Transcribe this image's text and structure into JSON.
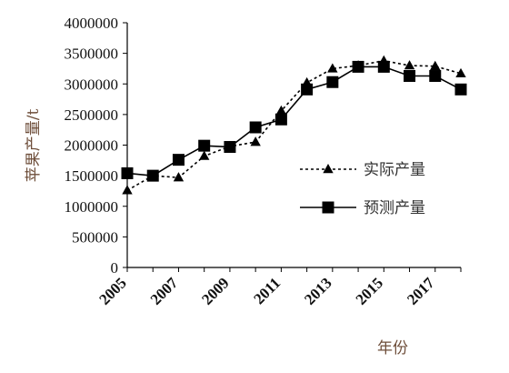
{
  "chart_data": {
    "type": "line",
    "title": "",
    "xlabel": "年份",
    "ylabel": "苹果产量/t",
    "x": [
      2005,
      2006,
      2007,
      2008,
      2009,
      2010,
      2011,
      2012,
      2013,
      2014,
      2015,
      2016,
      2017,
      2018
    ],
    "x_tick_labels": [
      "2005",
      "2007",
      "2009",
      "2011",
      "2013",
      "2015",
      "2017"
    ],
    "y_tick_labels": [
      "0",
      "500000",
      "1000000",
      "1500000",
      "2000000",
      "2500000",
      "3000000",
      "3500000",
      "4000000"
    ],
    "ylim": [
      0,
      4000000
    ],
    "grid": false,
    "legend_position": "right",
    "series": [
      {
        "name": "实际产量",
        "style": "dashed",
        "marker": "triangle",
        "color": "#000000",
        "values": [
          1260000,
          1500000,
          1470000,
          1820000,
          1980000,
          2050000,
          2560000,
          3020000,
          3250000,
          3300000,
          3380000,
          3300000,
          3290000,
          3170000
        ]
      },
      {
        "name": "预测产量",
        "style": "solid",
        "marker": "square",
        "color": "#000000",
        "values": [
          1540000,
          1500000,
          1760000,
          1990000,
          1970000,
          2290000,
          2420000,
          2910000,
          3030000,
          3280000,
          3280000,
          3130000,
          3130000,
          2910000
        ]
      }
    ]
  }
}
